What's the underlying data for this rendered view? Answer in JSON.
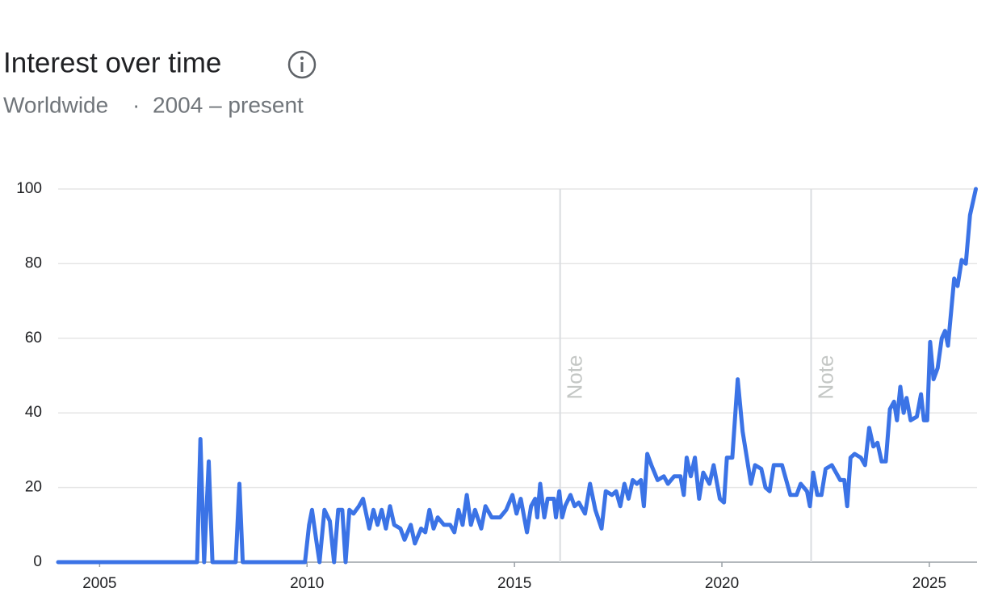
{
  "chart_data": {
    "type": "line",
    "title": "Interest over time",
    "subtitle_region": "Worldwide",
    "subtitle_separator": "·",
    "subtitle_range": "2004 – present",
    "color": "#3b73e6",
    "grid": true,
    "xlim": [
      2004,
      2026.15
    ],
    "xticks": [
      2005,
      2010,
      2015,
      2020,
      2025
    ],
    "ylim": [
      0,
      100
    ],
    "yticks": [
      0,
      20,
      40,
      60,
      80,
      100
    ],
    "annotations": [
      {
        "x": 2016.1,
        "label": "Note"
      },
      {
        "x": 2022.15,
        "label": "Note"
      }
    ],
    "x": [
      2004,
      2007.35,
      2007.43,
      2007.52,
      2007.63,
      2007.72,
      2008.28,
      2008.37,
      2008.45,
      2009.95,
      2010.05,
      2010.12,
      2010.22,
      2010.3,
      2010.42,
      2010.55,
      2010.65,
      2010.75,
      2010.85,
      2010.93,
      2011.02,
      2011.12,
      2011.25,
      2011.35,
      2011.5,
      2011.6,
      2011.7,
      2011.8,
      2011.9,
      2012.0,
      2012.1,
      2012.25,
      2012.35,
      2012.5,
      2012.6,
      2012.75,
      2012.85,
      2012.95,
      2013.05,
      2013.15,
      2013.3,
      2013.45,
      2013.55,
      2013.65,
      2013.75,
      2013.85,
      2013.95,
      2014.05,
      2014.2,
      2014.3,
      2014.45,
      2014.65,
      2014.8,
      2014.95,
      2015.05,
      2015.15,
      2015.3,
      2015.4,
      2015.5,
      2015.55,
      2015.62,
      2015.72,
      2015.8,
      2015.95,
      2016.0,
      2016.08,
      2016.15,
      2016.22,
      2016.35,
      2016.45,
      2016.55,
      2016.7,
      2016.82,
      2016.95,
      2017.1,
      2017.2,
      2017.35,
      2017.45,
      2017.55,
      2017.65,
      2017.75,
      2017.85,
      2017.95,
      2018.05,
      2018.12,
      2018.2,
      2018.3,
      2018.45,
      2018.6,
      2018.7,
      2018.85,
      2019.0,
      2019.08,
      2019.15,
      2019.25,
      2019.35,
      2019.45,
      2019.55,
      2019.7,
      2019.8,
      2019.95,
      2020.05,
      2020.12,
      2020.25,
      2020.38,
      2020.5,
      2020.6,
      2020.7,
      2020.8,
      2020.95,
      2021.05,
      2021.15,
      2021.25,
      2021.45,
      2021.55,
      2021.65,
      2021.8,
      2021.9,
      2022.05,
      2022.12,
      2022.2,
      2022.3,
      2022.4,
      2022.5,
      2022.65,
      2022.75,
      2022.85,
      2022.95,
      2023.02,
      2023.1,
      2023.2,
      2023.35,
      2023.45,
      2023.55,
      2023.65,
      2023.75,
      2023.85,
      2023.95,
      2024.05,
      2024.15,
      2024.22,
      2024.3,
      2024.38,
      2024.45,
      2024.55,
      2024.7,
      2024.8,
      2024.87,
      2024.95,
      2025.02,
      2025.1,
      2025.2,
      2025.3,
      2025.38,
      2025.45,
      2025.6,
      2025.68,
      2025.78,
      2025.88,
      2025.98,
      2026.12
    ],
    "values": [
      0,
      0,
      33,
      0,
      27,
      0,
      0,
      21,
      0,
      0,
      10,
      14,
      6,
      0,
      14,
      11,
      0,
      14,
      14,
      0,
      14,
      13,
      15,
      17,
      9,
      14,
      10,
      14,
      9,
      15,
      10,
      9,
      6,
      10,
      5,
      9,
      8,
      14,
      9,
      12,
      10,
      10,
      8,
      14,
      10,
      18,
      10,
      14,
      9,
      15,
      12,
      12,
      14,
      18,
      13,
      17,
      8,
      15,
      17,
      12,
      21,
      12,
      17,
      17,
      12,
      19,
      12,
      15,
      18,
      15,
      16,
      13,
      21,
      14,
      9,
      19,
      18,
      19,
      15,
      21,
      17,
      22,
      21,
      22,
      15,
      29,
      26,
      22,
      23,
      21,
      23,
      23,
      18,
      28,
      23,
      28,
      17,
      24,
      21,
      26,
      17,
      16,
      28,
      28,
      49,
      35,
      28,
      21,
      26,
      25,
      20,
      19,
      26,
      26,
      22,
      18,
      18,
      21,
      19,
      15,
      24,
      18,
      18,
      25,
      26,
      24,
      22,
      22,
      15,
      28,
      29,
      28,
      26,
      36,
      31,
      32,
      27,
      27,
      41,
      43,
      38,
      47,
      40,
      44,
      38,
      39,
      45,
      38,
      38,
      59,
      49,
      52,
      60,
      62,
      58,
      76,
      74,
      81,
      80,
      93,
      100
    ]
  }
}
